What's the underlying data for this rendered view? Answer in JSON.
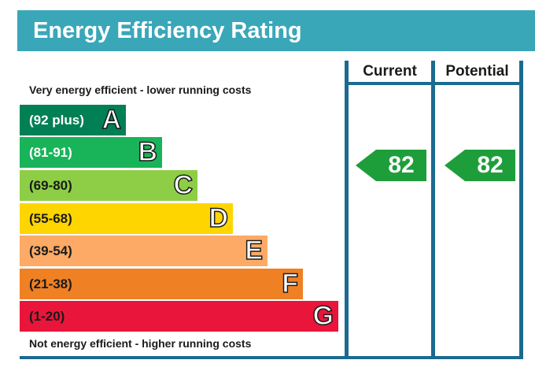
{
  "header": {
    "title": "Energy Efficiency Rating",
    "bg_color": "#3aa7b9"
  },
  "columns": {
    "current_label": "Current",
    "potential_label": "Potential"
  },
  "captions": {
    "top": "Very energy efficient - lower running costs",
    "bottom": "Not energy efficient - higher running costs"
  },
  "bands": [
    {
      "letter": "A",
      "range": "(92 plus)",
      "color": "#008054"
    },
    {
      "letter": "B",
      "range": "(81-91)",
      "color": "#19b459"
    },
    {
      "letter": "C",
      "range": "(69-80)",
      "color": "#8dce46"
    },
    {
      "letter": "D",
      "range": "(55-68)",
      "color": "#ffd500"
    },
    {
      "letter": "E",
      "range": "(39-54)",
      "color": "#fcaa65"
    },
    {
      "letter": "F",
      "range": "(21-38)",
      "color": "#ef8023"
    },
    {
      "letter": "G",
      "range": "(1-20)",
      "color": "#e9153b"
    }
  ],
  "ratings": {
    "current": {
      "value": "82",
      "band": "B",
      "color": "#1e9e3a"
    },
    "potential": {
      "value": "82",
      "band": "B",
      "color": "#1e9e3a"
    }
  },
  "frame_color": "#1b6a90"
}
